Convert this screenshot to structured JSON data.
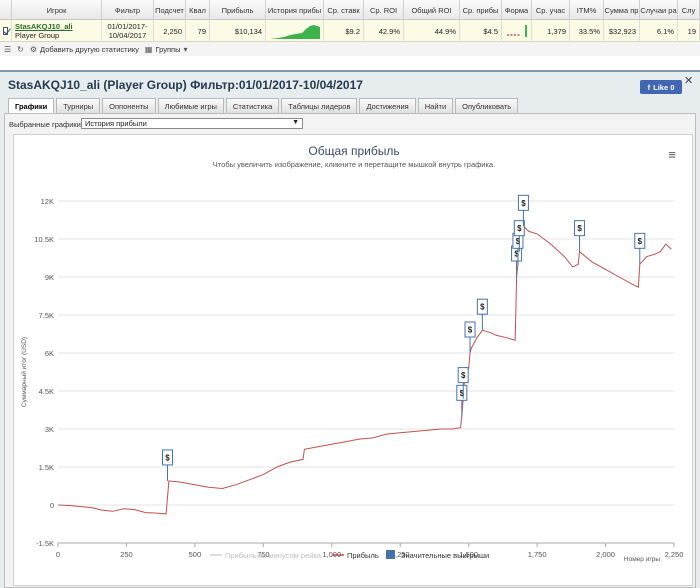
{
  "grid": {
    "columns": [
      {
        "label": "",
        "w": 12
      },
      {
        "label": "Игрок",
        "w": 90
      },
      {
        "label": "Фильтр",
        "w": 52
      },
      {
        "label": "Подсчет",
        "w": 32
      },
      {
        "label": "Квал",
        "w": 24
      },
      {
        "label": "Прибыль",
        "w": 56
      },
      {
        "label": "История прибы",
        "w": 58
      },
      {
        "label": "Ср. ставк",
        "w": 40
      },
      {
        "label": "Ср. ROI",
        "w": 40
      },
      {
        "label": "Общий ROI",
        "w": 56
      },
      {
        "label": "Ср. прибы",
        "w": 42
      },
      {
        "label": "Форма",
        "w": 30
      },
      {
        "label": "Ср. учас",
        "w": 38
      },
      {
        "label": "ITM%",
        "w": 34
      },
      {
        "label": "Сумма пр",
        "w": 36
      },
      {
        "label": "Случаи ра",
        "w": 38
      },
      {
        "label": "Слу",
        "w": 22
      }
    ],
    "row": {
      "player": "StasAKQJ10_ali",
      "group": "Player Group",
      "filter_from": "01/01/2017-",
      "filter_to": "10/04/2017",
      "count": "2,250",
      "qual": "79",
      "profit": "$10,134",
      "avg_stake": "$9.2",
      "avg_roi": "42.9%",
      "total_roi": "44.9%",
      "avg_profit": "$4.5",
      "form": "",
      "avg_entrants": "1,379",
      "itm": "33.5%",
      "sum": "$32,923",
      "cases": "6.1%",
      "last": "19"
    },
    "toolbar": {
      "add_stat": "Добавить другую статистику",
      "groups": "Группы"
    }
  },
  "panel": {
    "title": "StasAKQJ10_ali (Player Group) Фильтр:01/01/2017-10/04/2017",
    "like_label": "Like 0",
    "tabs": [
      "Графики",
      "Турниры",
      "Оппоненты",
      "Любимые игры",
      "Статистика",
      "Таблицы лидеров",
      "Достижения",
      "Найти",
      "Опубликовать"
    ],
    "active_tab": 0,
    "select_label": "Выбранные графики:",
    "select_value": "История прибыли"
  },
  "chart_data": {
    "type": "line",
    "title": "Общая прибыль",
    "subtitle": "Чтобы увеличить изображение, кликните и перетащите мышкой внутрь графика.",
    "xlabel": "Номер игры",
    "ylabel": "Суммарный итог (USD)",
    "xlim": [
      0,
      2250
    ],
    "ylim": [
      -1500,
      12000
    ],
    "x_ticks": [
      0,
      250,
      500,
      750,
      1000,
      1250,
      1500,
      1750,
      2000,
      2250
    ],
    "x_tick_labels": [
      "0",
      "250",
      "500",
      "750",
      "1,000",
      "1,250",
      "1,500",
      "1,750",
      "2,000",
      "2,250"
    ],
    "y_ticks": [
      -1500,
      0,
      1500,
      3000,
      4500,
      6000,
      7500,
      9000,
      10500,
      12000
    ],
    "y_tick_labels": [
      "-1.5K",
      "0",
      "1.5K",
      "3K",
      "4.5K",
      "6K",
      "7.5K",
      "9K",
      "10.5K",
      "12K"
    ],
    "series": [
      {
        "name": "Прибыль",
        "color": "#c0504d",
        "x": [
          0,
          40,
          80,
          120,
          160,
          200,
          240,
          280,
          320,
          360,
          395,
          400,
          405,
          450,
          500,
          550,
          600,
          650,
          700,
          750,
          800,
          850,
          895,
          900,
          950,
          1000,
          1050,
          1100,
          1150,
          1200,
          1250,
          1300,
          1350,
          1400,
          1440,
          1470,
          1475,
          1480,
          1485,
          1500,
          1505,
          1510,
          1530,
          1550,
          1580,
          1600,
          1640,
          1670,
          1675,
          1680,
          1685,
          1700,
          1720,
          1750,
          1800,
          1850,
          1880,
          1900,
          1905,
          1950,
          2000,
          2050,
          2100,
          2120,
          2125,
          2150,
          2180,
          2200,
          2220,
          2240
        ],
        "y": [
          0,
          -20,
          -60,
          -100,
          -200,
          -250,
          -150,
          -180,
          -300,
          -320,
          -350,
          300,
          950,
          900,
          800,
          700,
          650,
          800,
          1000,
          1200,
          1500,
          1700,
          1800,
          2200,
          2300,
          2400,
          2500,
          2600,
          2650,
          2800,
          2850,
          2900,
          2950,
          3000,
          3000,
          3050,
          3500,
          4200,
          5000,
          5400,
          6000,
          6200,
          6600,
          6900,
          6800,
          6700,
          6600,
          6500,
          9000,
          9500,
          10000,
          11000,
          10800,
          10700,
          10300,
          9800,
          9400,
          9500,
          10000,
          9600,
          9300,
          9000,
          8700,
          8600,
          9500,
          9800,
          9900,
          10000,
          10300,
          10100
        ]
      },
      {
        "name": "Прибыль за минусом рейка",
        "color": "#d0d0d0",
        "x": [],
        "y": []
      }
    ],
    "significant_wins": [
      {
        "x": 400,
        "y": 950
      },
      {
        "x": 1475,
        "y": 3500
      },
      {
        "x": 1480,
        "y": 4200
      },
      {
        "x": 1505,
        "y": 6000
      },
      {
        "x": 1550,
        "y": 6900
      },
      {
        "x": 1675,
        "y": 9000
      },
      {
        "x": 1680,
        "y": 9500
      },
      {
        "x": 1685,
        "y": 10000
      },
      {
        "x": 1700,
        "y": 11000
      },
      {
        "x": 1905,
        "y": 10000
      },
      {
        "x": 2125,
        "y": 9500
      }
    ],
    "legend": {
      "placement": "bottom-center",
      "items": [
        {
          "label": "Прибыль за минусом рейка",
          "color": "#d0d0d0",
          "kind": "line"
        },
        {
          "label": "Прибыль",
          "color": "#c0504d",
          "kind": "line"
        },
        {
          "label": "Значительные выигрыши",
          "color": "#4572a7",
          "kind": "box"
        }
      ]
    },
    "grid": true
  }
}
